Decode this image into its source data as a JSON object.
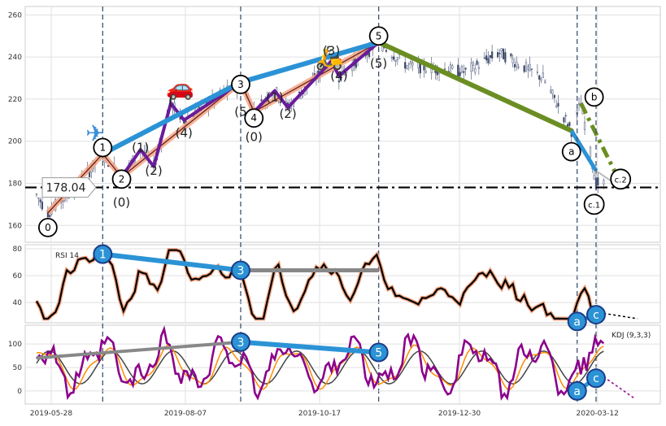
{
  "chart_data": [
    {
      "type": "candlestick",
      "panel": "price",
      "y_ticks": [
        160,
        180,
        200,
        220,
        240,
        260
      ],
      "ylim": [
        152,
        264
      ],
      "x_ticks": [
        "2019-05-28",
        "2019-08-07",
        "2019-10-17",
        "2019-12-30",
        "2020-03-12"
      ],
      "grid": true,
      "current_price": "178.04",
      "current_price_value": 178.04,
      "wave_labels": [
        {
          "text": "0",
          "x": "2019-06-03",
          "y": 159,
          "circled": true
        },
        {
          "text": "1",
          "x": "2019-07-02",
          "y": 197,
          "circled": true
        },
        {
          "text": "2",
          "x": "2019-07-12",
          "y": 182,
          "circled": true
        },
        {
          "text": "(0)",
          "x": "2019-07-12",
          "y": 171,
          "circled": false
        },
        {
          "text": "(1)",
          "x": "2019-07-22",
          "y": 197,
          "circled": false
        },
        {
          "text": "(2)",
          "x": "2019-07-29",
          "y": 186,
          "circled": false
        },
        {
          "text": "(",
          "x": "2019-08-07",
          "y": 219,
          "circled": false
        },
        {
          "text": "(4)",
          "x": "2019-08-14",
          "y": 204,
          "circled": false
        },
        {
          "text": "3",
          "x": "2019-09-13",
          "y": 227,
          "circled": true
        },
        {
          "text": "(5",
          "x": "2019-09-13",
          "y": 214,
          "circled": false
        },
        {
          "text": "4",
          "x": "2019-09-20",
          "y": 211,
          "circled": true
        },
        {
          "text": "(0)",
          "x": "2019-09-20",
          "y": 202,
          "circled": false
        },
        {
          "text": "(1)",
          "x": "2019-10-01",
          "y": 221,
          "circled": false
        },
        {
          "text": "(2)",
          "x": "2019-10-08",
          "y": 213,
          "circled": false
        },
        {
          "text": "(3)",
          "x": "2019-10-31",
          "y": 243,
          "circled": false
        },
        {
          "text": "(4)",
          "x": "2019-11-04",
          "y": 231,
          "circled": false
        },
        {
          "text": "5",
          "x": "2019-11-25",
          "y": 250,
          "circled": true
        },
        {
          "text": "(5)",
          "x": "2019-11-25",
          "y": 237,
          "circled": false
        },
        {
          "text": "a",
          "x": "2020-03-06",
          "y": 195,
          "circled": true
        },
        {
          "text": "b",
          "x": "2020-03-18",
          "y": 221,
          "circled": true
        },
        {
          "text": "c.1",
          "x": "2020-03-18",
          "y": 170,
          "circled": true
        },
        {
          "text": "c.2",
          "x": "2020-04-01",
          "y": 182,
          "circled": true
        }
      ],
      "icons": [
        {
          "name": "airplane-icon",
          "glyph": "✈",
          "x": "2019-06-28",
          "y": 200
        },
        {
          "name": "car-icon",
          "glyph": "🚗",
          "x": "2019-08-12",
          "y": 222
        },
        {
          "name": "scooter-icon",
          "glyph": "🛵",
          "x": "2019-10-30",
          "y": 236
        }
      ],
      "vertical_markers": [
        "2019-07-02",
        "2019-09-13",
        "2019-11-25",
        "2020-03-09",
        "2020-03-19"
      ]
    },
    {
      "type": "line",
      "panel": "rsi",
      "label": "RSI 14",
      "y_ticks": [
        40,
        60,
        80
      ],
      "ylim": [
        25,
        83
      ],
      "series": [
        {
          "values_approx": "RSI oscillating between ~30 and ~78"
        }
      ],
      "annotations": [
        {
          "text": "1",
          "x": "2019-07-02",
          "y": 76
        },
        {
          "text": "3",
          "x": "2019-09-13",
          "y": 64
        },
        {
          "text": "a",
          "x": "2020-03-09",
          "y": 26
        },
        {
          "text": "c",
          "x": "2020-03-19",
          "y": 31
        }
      ]
    },
    {
      "type": "line",
      "panel": "kdj",
      "label": "KDJ (9,3,3)",
      "y_ticks": [
        0,
        50,
        100
      ],
      "ylim": [
        -28,
        140
      ],
      "annotations": [
        {
          "text": "3",
          "x": "2019-09-13",
          "y": 104
        },
        {
          "text": "5",
          "x": "2019-11-25",
          "y": 82
        },
        {
          "text": "a",
          "x": "2020-03-09",
          "y": 0
        },
        {
          "text": "c",
          "x": "2020-03-19",
          "y": 27
        }
      ]
    }
  ],
  "colors": {
    "wave_main": "#2b93d5",
    "wave_sub": "#6a1b9a",
    "wave_orange": "#f4a582",
    "correction": "#6b8e23",
    "candle_up": "#e7e7f3",
    "candle_down": "#3e4a6b",
    "rsi": "#000000",
    "k_line": "#8b008b",
    "d_line": "#ff8c00",
    "j_line": "#444444"
  }
}
